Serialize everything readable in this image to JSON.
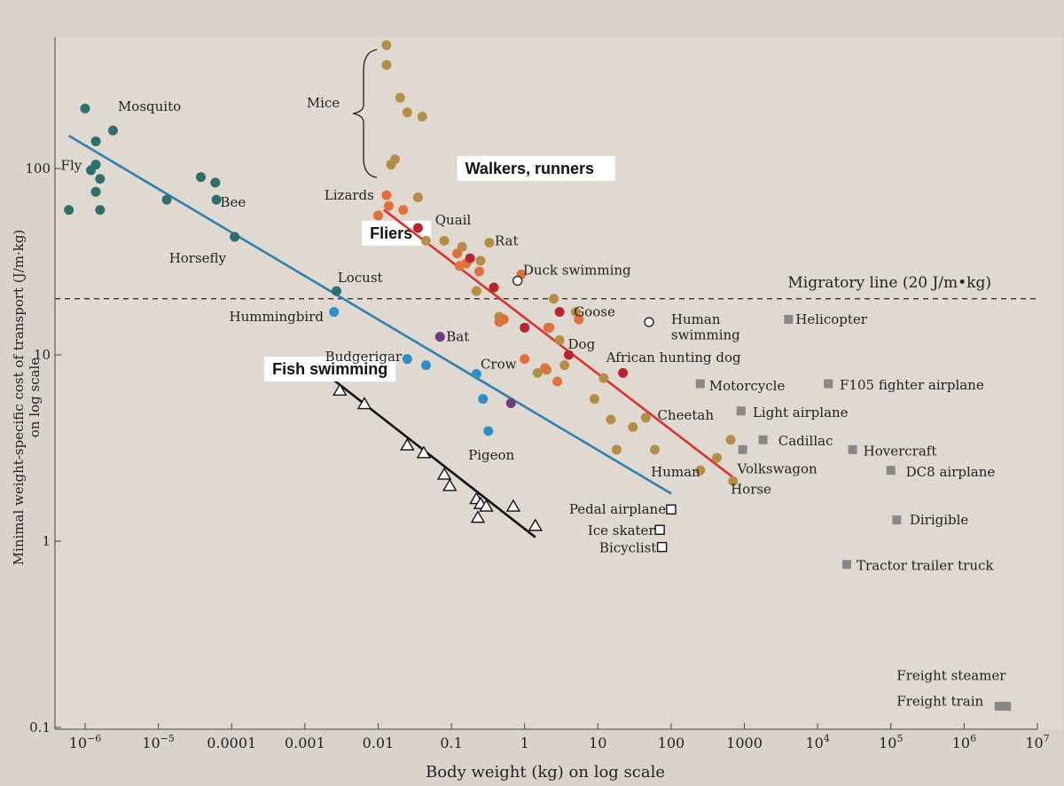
{
  "chart_data": {
    "type": "scatter",
    "x_scale": "log",
    "y_scale": "log",
    "xlabel": "Body weight (kg) on log scale",
    "ylabel": "Minimal weight-specific cost of transport (J/m·kg) on log scale",
    "xlim": [
      5e-07,
      10000000
    ],
    "ylim": [
      0.1,
      600
    ],
    "x_ticks": [
      {
        "value": 1e-06,
        "label": "10",
        "sup": "−6"
      },
      {
        "value": 1e-05,
        "label": "10",
        "sup": "−5"
      },
      {
        "value": 0.0001,
        "label": "0.0001",
        "sup": ""
      },
      {
        "value": 0.001,
        "label": "0.001",
        "sup": ""
      },
      {
        "value": 0.01,
        "label": "0.01",
        "sup": ""
      },
      {
        "value": 0.1,
        "label": "0.1",
        "sup": ""
      },
      {
        "value": 1,
        "label": "1",
        "sup": ""
      },
      {
        "value": 10,
        "label": "10",
        "sup": ""
      },
      {
        "value": 100,
        "label": "100",
        "sup": ""
      },
      {
        "value": 1000,
        "label": "1000",
        "sup": ""
      },
      {
        "value": 10000,
        "label": "10",
        "sup": "4"
      },
      {
        "value": 100000,
        "label": "10",
        "sup": "5"
      },
      {
        "value": 1000000,
        "label": "10",
        "sup": "6"
      },
      {
        "value": 10000000,
        "label": "10",
        "sup": "7"
      }
    ],
    "y_ticks": [
      {
        "value": 0.1,
        "label": "0.1"
      },
      {
        "value": 1,
        "label": "1"
      },
      {
        "value": 10,
        "label": "10"
      },
      {
        "value": 100,
        "label": "100"
      }
    ],
    "colors": {
      "fliers": "#2f6e6a",
      "bird": "#2f8fc4",
      "bat": "#6b3d7a",
      "walker": "#b58e45",
      "runner": "#e0703e",
      "runner_red": "#b5262e",
      "vehicle": "#888888",
      "fliers_line": "#2f7fb0",
      "walkers_line": "#d8322b",
      "fish_line": "#111111",
      "bg": "#d8d2cb",
      "plot_bg": "#dfd9d2"
    },
    "migratory_line": {
      "y": 20,
      "label": "Migratory line (20 J/m•kg)"
    },
    "fits": [
      {
        "name": "Fliers",
        "x": [
          6e-07,
          100
        ],
        "y": [
          150,
          1.8
        ],
        "color": "#2f7fb0",
        "label_x": 0.006,
        "label_y": 44
      },
      {
        "name": "Walkers, runners",
        "x": [
          0.012,
          700
        ],
        "y": [
          60,
          2.2
        ],
        "color": "#d8322b",
        "label_x": 0.12,
        "label_y": 98
      },
      {
        "name": "Fish swimming",
        "x": [
          0.0025,
          1.4
        ],
        "y": [
          7.3,
          1.05
        ],
        "color": "#111111",
        "label_x": 0.00028,
        "label_y": 8.2
      }
    ],
    "series": [
      {
        "group": "insects",
        "marker": "circle",
        "color": "#2f6e6a",
        "x": [
          6e-07,
          1e-06,
          1.2e-06,
          1.4e-06,
          1.4e-06,
          1.6e-06,
          1.6e-06,
          1.4e-06,
          2.4e-06,
          1.3e-05,
          3.8e-05,
          6e-05,
          6.2e-05,
          0.00011,
          0.0027
        ],
        "y": [
          60,
          210,
          98,
          75,
          105,
          88,
          60,
          140,
          160,
          68,
          90,
          84,
          68,
          43,
          22
        ]
      },
      {
        "group": "birds",
        "marker": "circle",
        "color": "#2f8fc4",
        "x": [
          0.0025,
          0.025,
          0.045,
          0.22,
          0.27,
          0.32
        ],
        "y": [
          17,
          9.5,
          8.8,
          7.9,
          5.8,
          3.9
        ]
      },
      {
        "group": "bats",
        "marker": "circle",
        "color": "#6b3d7a",
        "x": [
          0.07,
          0.65
        ],
        "y": [
          12.5,
          5.5
        ]
      },
      {
        "group": "mice_walkers",
        "marker": "circle",
        "color": "#b58e45",
        "x": [
          0.013,
          0.013,
          0.02,
          0.025,
          0.04,
          0.015,
          0.017,
          0.035,
          0.045,
          0.08,
          0.14,
          0.22,
          0.25,
          0.33,
          0.45,
          1.5,
          2.0,
          2.2,
          2.5,
          3.5,
          5.0,
          9.0,
          15.0,
          12.0,
          18.0,
          30.0,
          45.0,
          60.0,
          250.0,
          420.0,
          650.0,
          3.0,
          700.0
        ],
        "y": [
          460,
          360,
          240,
          200,
          190,
          105,
          112,
          70,
          41,
          41,
          38,
          22,
          32,
          40,
          16,
          8,
          8.3,
          14,
          20,
          8.8,
          17,
          5.8,
          4.5,
          7.5,
          3.1,
          4.1,
          4.6,
          3.1,
          2.4,
          2.8,
          3.5,
          12,
          2.1
        ]
      },
      {
        "group": "lizards_runners",
        "marker": "circle",
        "color": "#e0703e",
        "x": [
          0.01,
          0.013,
          0.014,
          0.022,
          0.12,
          0.13,
          0.16,
          0.24,
          0.9,
          0.45,
          0.52,
          2.1,
          2.8,
          1.9,
          5.5,
          1.0
        ],
        "y": [
          56,
          72,
          63,
          60,
          35,
          30,
          31,
          28,
          27,
          15,
          15.5,
          14,
          7.2,
          8.5,
          15.5,
          9.5
        ]
      },
      {
        "group": "red_runners",
        "marker": "circle",
        "color": "#b5262e",
        "x": [
          0.035,
          0.18,
          0.38,
          1.0,
          3.0,
          4.0,
          22.0
        ],
        "y": [
          48,
          33,
          23,
          14,
          17,
          10,
          8
        ]
      },
      {
        "group": "swimming_open",
        "marker": "open_circle",
        "color": "#ffffff",
        "x": [
          0.8,
          50.0
        ],
        "y": [
          25,
          15
        ]
      },
      {
        "group": "fish",
        "marker": "triangle",
        "color": "#ffffff",
        "x": [
          0.003,
          0.0065,
          0.025,
          0.042,
          0.08,
          0.095,
          0.22,
          0.25,
          0.23,
          0.3,
          0.7,
          1.4
        ],
        "y": [
          6.5,
          5.5,
          3.3,
          3.0,
          2.3,
          2.0,
          1.7,
          1.6,
          1.35,
          1.55,
          1.55,
          1.22
        ]
      },
      {
        "group": "human_powered",
        "marker": "open_square",
        "color": "#ffffff",
        "x": [
          100.0,
          70.0,
          75.0
        ],
        "y": [
          1.48,
          1.15,
          0.93
        ]
      },
      {
        "group": "vehicles",
        "marker": "square",
        "color": "#888888",
        "x": [
          4000.0,
          250.0,
          900.0,
          14000.0,
          1800.0,
          950.0,
          30000.0,
          100000.0,
          120000.0,
          25000.0,
          3000000.0,
          3800000.0
        ],
        "y": [
          15.5,
          7,
          5,
          7,
          3.5,
          3.1,
          3.1,
          2.4,
          1.3,
          0.75,
          0.13,
          0.13
        ]
      }
    ],
    "labels": [
      {
        "text": "Mosquito",
        "x": 2.8e-06,
        "y": 215,
        "anchor": "start"
      },
      {
        "text": "Fly",
        "x": 9e-07,
        "y": 104,
        "anchor": "end"
      },
      {
        "text": "Bee",
        "x": 7e-05,
        "y": 66,
        "anchor": "start"
      },
      {
        "text": "Horsefly",
        "x": 1.4e-05,
        "y": 33,
        "anchor": "start"
      },
      {
        "text": "Locust",
        "x": 0.0028,
        "y": 26,
        "anchor": "start"
      },
      {
        "text": "Hummingbird",
        "x": 0.0018,
        "y": 16,
        "anchor": "end"
      },
      {
        "text": "Bat",
        "x": 0.085,
        "y": 12.5,
        "anchor": "start"
      },
      {
        "text": "Budgerigar",
        "x": 0.021,
        "y": 9.8,
        "anchor": "end"
      },
      {
        "text": "Crow",
        "x": 0.25,
        "y": 8.9,
        "anchor": "start"
      },
      {
        "text": "Pigeon",
        "x": 0.17,
        "y": 2.9,
        "anchor": "start"
      },
      {
        "text": "Mice",
        "x": 0.003,
        "y": 225,
        "anchor": "end"
      },
      {
        "text": "Lizards",
        "x": 0.0088,
        "y": 72,
        "anchor": "end"
      },
      {
        "text": "Quail",
        "x": 0.06,
        "y": 53,
        "anchor": "start"
      },
      {
        "text": "Rat",
        "x": 0.39,
        "y": 41,
        "anchor": "start"
      },
      {
        "text": "Duck swimming",
        "x": 0.95,
        "y": 28.5,
        "anchor": "start"
      },
      {
        "text": "Goose",
        "x": 4.7,
        "y": 17,
        "anchor": "start"
      },
      {
        "text": "Dog",
        "x": 3.9,
        "y": 11.4,
        "anchor": "start"
      },
      {
        "text": "African hunting dog",
        "x": 13,
        "y": 9.7,
        "anchor": "start"
      },
      {
        "text": "Cheetah",
        "x": 65,
        "y": 4.75,
        "anchor": "start"
      },
      {
        "text": "Human",
        "x": 53,
        "y": 2.35,
        "anchor": "start"
      },
      {
        "text": "Horse",
        "x": 650,
        "y": 1.9,
        "anchor": "start"
      },
      {
        "text": "Human",
        "x": 100,
        "y": 15.5,
        "anchor": "start"
      },
      {
        "text": "swimming",
        "x": 100,
        "y": 12.8,
        "anchor": "start"
      },
      {
        "text": "Helicopter",
        "x": 5000,
        "y": 15.5,
        "anchor": "start"
      },
      {
        "text": "Motorcycle",
        "x": 330,
        "y": 6.8,
        "anchor": "start"
      },
      {
        "text": "F105 fighter airplane",
        "x": 20000,
        "y": 6.9,
        "anchor": "start"
      },
      {
        "text": "Light airplane",
        "x": 1300,
        "y": 4.9,
        "anchor": "start"
      },
      {
        "text": "Cadillac",
        "x": 2900,
        "y": 3.45,
        "anchor": "start"
      },
      {
        "text": "Hovercraft",
        "x": 42000,
        "y": 3.05,
        "anchor": "start"
      },
      {
        "text": "Volkswagon",
        "x": 800,
        "y": 2.45,
        "anchor": "start"
      },
      {
        "text": "DC8 airplane",
        "x": 160000,
        "y": 2.35,
        "anchor": "start"
      },
      {
        "text": "Pedal airplane",
        "x": 85,
        "y": 1.48,
        "anchor": "end"
      },
      {
        "text": "Ice skater",
        "x": 60,
        "y": 1.14,
        "anchor": "end"
      },
      {
        "text": "Bicyclist",
        "x": 63,
        "y": 0.92,
        "anchor": "end"
      },
      {
        "text": "Dirigible",
        "x": 180000,
        "y": 1.3,
        "anchor": "start"
      },
      {
        "text": "Tractor trailer truck",
        "x": 34000,
        "y": 0.74,
        "anchor": "start"
      },
      {
        "text": "Freight steamer",
        "x": 120000,
        "y": 0.19,
        "anchor": "start"
      },
      {
        "text": "Freight train",
        "x": 120000,
        "y": 0.138,
        "anchor": "start"
      }
    ]
  }
}
